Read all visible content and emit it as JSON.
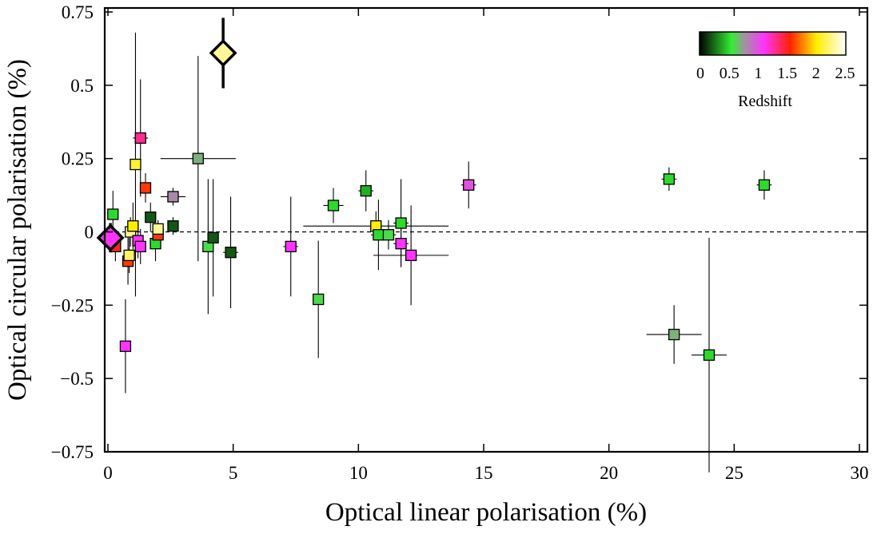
{
  "chart_data": {
    "type": "scatter",
    "title": "",
    "xlabel": "Optical linear polarisation (%)",
    "ylabel": "Optical circular polarisation (%)",
    "xlim": [
      0,
      30
    ],
    "ylim": [
      -0.75,
      0.75
    ],
    "x_ticks": [
      0,
      5,
      10,
      15,
      20,
      25,
      30
    ],
    "y_ticks": [
      -0.75,
      -0.5,
      -0.25,
      0,
      0.25,
      0.5,
      0.75
    ],
    "x_tick_labels": [
      "0",
      "5",
      "10",
      "15",
      "20",
      "25",
      "30"
    ],
    "y_tick_labels": [
      "−0.75",
      "−0.5",
      "−0.25",
      "0",
      "0.25",
      "0.5",
      "0.75"
    ],
    "zero_line": true,
    "grid": false,
    "colorbar": {
      "label": "Redshift",
      "range": [
        0,
        2.5
      ],
      "tick_values": [
        0,
        0.5,
        1,
        1.5,
        2,
        2.5
      ],
      "tick_labels": [
        "0",
        "0.5",
        "1",
        "1.5",
        "2",
        "2.5"
      ],
      "placement": "top-right",
      "stops": [
        {
          "z": 0.0,
          "color": "#000000"
        },
        {
          "z": 0.55,
          "color": "#33ee33"
        },
        {
          "z": 0.75,
          "color": "#999999"
        },
        {
          "z": 1.1,
          "color": "#ff33ff"
        },
        {
          "z": 1.55,
          "color": "#ff2200"
        },
        {
          "z": 2.0,
          "color": "#ffee00"
        },
        {
          "z": 2.5,
          "color": "#ffffff"
        }
      ]
    },
    "points": [
      {
        "x": 0.2,
        "y": 0.06,
        "z": 0.5,
        "xerr": 0.1,
        "yerr": 0.08
      },
      {
        "x": 0.3,
        "y": -0.05,
        "z": 1.5,
        "xerr": 0.1,
        "yerr": 0.05
      },
      {
        "x": 0.7,
        "y": -0.39,
        "z": 1.1,
        "xerr": 0.1,
        "yerr": 0.16
      },
      {
        "x": 0.8,
        "y": -0.1,
        "z": 1.6,
        "xerr": 0.1,
        "yerr": 0.08
      },
      {
        "x": 0.85,
        "y": -0.08,
        "z": 2.2,
        "xerr": 0.1,
        "yerr": 0.06
      },
      {
        "x": 0.9,
        "y": 0.0,
        "z": 2.3,
        "xerr": 0.1,
        "yerr": 0.05
      },
      {
        "x": 1.0,
        "y": 0.02,
        "z": 2.0,
        "xerr": 0.15,
        "yerr": 0.08
      },
      {
        "x": 1.1,
        "y": 0.23,
        "z": 2.1,
        "xerr": 0.15,
        "yerr": 0.45
      },
      {
        "x": 1.2,
        "y": -0.03,
        "z": 1.1,
        "xerr": 0.1,
        "yerr": 0.06
      },
      {
        "x": 1.3,
        "y": -0.05,
        "z": 1.1,
        "xerr": 0.1,
        "yerr": 0.06
      },
      {
        "x": 1.3,
        "y": 0.32,
        "z": 1.3,
        "xerr": 0.3,
        "yerr": 0.2
      },
      {
        "x": 1.5,
        "y": 0.15,
        "z": 1.6,
        "xerr": 0.2,
        "yerr": 0.05
      },
      {
        "x": 1.7,
        "y": 0.05,
        "z": 0.2,
        "xerr": 0.2,
        "yerr": 0.05
      },
      {
        "x": 1.9,
        "y": -0.04,
        "z": 0.5,
        "xerr": 0.2,
        "yerr": 0.06
      },
      {
        "x": 2.0,
        "y": -0.01,
        "z": 1.6,
        "xerr": 0.2,
        "yerr": 0.04
      },
      {
        "x": 2.0,
        "y": 0.01,
        "z": 2.3,
        "xerr": 0.2,
        "yerr": 0.03
      },
      {
        "x": 2.6,
        "y": 0.12,
        "z": 0.8,
        "xerr": 0.5,
        "yerr": 0.03
      },
      {
        "x": 2.6,
        "y": 0.02,
        "z": 0.2,
        "xerr": 0.2,
        "yerr": 0.03
      },
      {
        "x": 3.6,
        "y": 0.25,
        "z": 0.7,
        "xerr": 1.5,
        "yerr": 0.35
      },
      {
        "x": 4.0,
        "y": -0.05,
        "z": 0.6,
        "xerr": 0.2,
        "yerr": 0.23
      },
      {
        "x": 4.2,
        "y": -0.02,
        "z": 0.2,
        "xerr": 0.2,
        "yerr": 0.2
      },
      {
        "x": 4.9,
        "y": -0.07,
        "z": 0.2,
        "xerr": 0.3,
        "yerr": 0.19
      },
      {
        "x": 7.3,
        "y": -0.05,
        "z": 1.1,
        "xerr": 0.3,
        "yerr": 0.17
      },
      {
        "x": 8.4,
        "y": -0.23,
        "z": 0.6,
        "xerr": 0.2,
        "yerr": 0.2
      },
      {
        "x": 9.0,
        "y": 0.09,
        "z": 0.5,
        "xerr": 0.4,
        "yerr": 0.06
      },
      {
        "x": 10.3,
        "y": 0.14,
        "z": 0.4,
        "xerr": 0.3,
        "yerr": 0.07
      },
      {
        "x": 10.7,
        "y": 0.02,
        "z": 2.0,
        "xerr": 2.9,
        "yerr": 0.05
      },
      {
        "x": 10.8,
        "y": -0.01,
        "z": 0.5,
        "xerr": 0.3,
        "yerr": 0.12
      },
      {
        "x": 11.2,
        "y": -0.01,
        "z": 0.6,
        "xerr": 0.3,
        "yerr": 0.05
      },
      {
        "x": 11.7,
        "y": 0.03,
        "z": 0.5,
        "xerr": 0.3,
        "yerr": 0.15
      },
      {
        "x": 11.7,
        "y": -0.04,
        "z": 1.1,
        "xerr": 0.3,
        "yerr": 0.08
      },
      {
        "x": 12.1,
        "y": -0.08,
        "z": 1.1,
        "xerr": 1.5,
        "yerr": 0.17
      },
      {
        "x": 14.4,
        "y": 0.16,
        "z": 1.0,
        "xerr": 0.3,
        "yerr": 0.08
      },
      {
        "x": 22.4,
        "y": 0.18,
        "z": 0.5,
        "xerr": 0.3,
        "yerr": 0.04
      },
      {
        "x": 22.6,
        "y": -0.35,
        "z": 0.7,
        "xerr": 1.1,
        "yerr": 0.1
      },
      {
        "x": 24.0,
        "y": -0.42,
        "z": 0.5,
        "xerr": 0.7,
        "yerr": 0.4
      },
      {
        "x": 26.2,
        "y": 0.16,
        "z": 0.5,
        "xerr": 0.3,
        "yerr": 0.05
      }
    ],
    "highlighted_points": [
      {
        "x": 4.6,
        "y": 0.61,
        "z": 2.3,
        "xerr": 0.0,
        "yerr": 0.12
      },
      {
        "x": 0.1,
        "y": -0.02,
        "z": 1.1,
        "xerr": 0.0,
        "yerr": 0.05
      }
    ]
  }
}
